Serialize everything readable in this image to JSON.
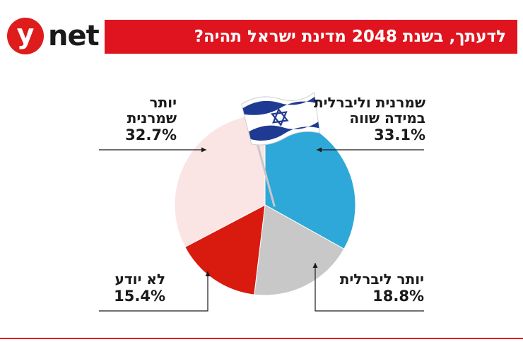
{
  "header": {
    "logo_y": "y",
    "logo_net": "net",
    "title": "לדעתך, בשנת 2048 מדינת ישראל תהיה?"
  },
  "colors": {
    "brand_red": "#e0141e",
    "slice_conservative": "#fbe4e4",
    "slice_equal": "#2da8d8",
    "slice_liberal": "#c8c8c8",
    "slice_unknown": "#d91a0e",
    "flag_blue": "#1f3a93"
  },
  "chart_data": {
    "type": "pie",
    "title": "לדעתך, בשנת 2048 מדינת ישראל תהיה?",
    "series": [
      {
        "label": "שמרנית וליברלית במידה שווה",
        "value": 33.1,
        "display": "33.1%"
      },
      {
        "label": "יותר ליברלית",
        "value": 18.8,
        "display": "18.8%"
      },
      {
        "label": "לא יודע",
        "value": 15.4,
        "display": "15.4%"
      },
      {
        "label": "יותר שמרנית",
        "value": 32.7,
        "display": "32.7%"
      }
    ]
  },
  "labels": {
    "equal_line1": "שמרנית וליברלית",
    "equal_line2": "במידה שווה",
    "equal_pct": "33.1%",
    "liberal_line1": "יותר ליברלית",
    "liberal_pct": "18.8%",
    "unknown_line1": "לא יודע",
    "unknown_pct": "15.4%",
    "conservative_line1": "יותר",
    "conservative_line2": "שמרנית",
    "conservative_pct": "32.7%"
  }
}
